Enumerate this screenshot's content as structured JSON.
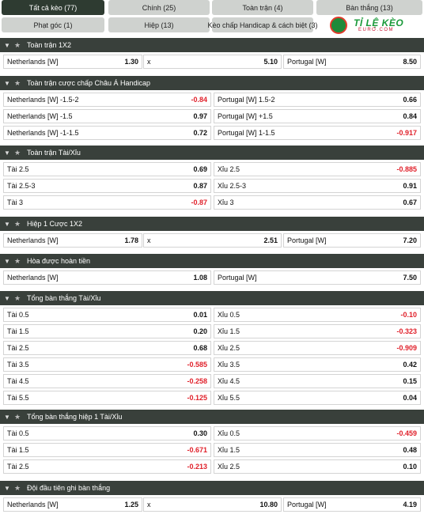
{
  "tabs": [
    {
      "label": "Tất cả kèo (77)"
    },
    {
      "label": "Chính (25)"
    },
    {
      "label": "Toàn trận (4)"
    },
    {
      "label": "Bàn thắng (13)"
    },
    {
      "label": "Phạt góc (1)"
    },
    {
      "label": "Hiệp (13)"
    },
    {
      "label": "Kèo chấp Handicap & cách biệt (3)"
    }
  ],
  "logo": {
    "main": "TỈ LỆ KÈO",
    "sub": "EURO.COM"
  },
  "sections": [
    {
      "title": "Toàn trận 1X2",
      "rows": [
        [
          {
            "n": "Netherlands [W]",
            "o": "1.30"
          },
          {
            "n": "x",
            "o": "5.10"
          },
          {
            "n": "Portugal [W]",
            "o": "8.50"
          }
        ]
      ]
    },
    {
      "title": "Toàn trận cược chấp Châu Á Handicap",
      "rows": [
        [
          {
            "n": "Netherlands [W] -1.5-2",
            "o": "-0.84"
          },
          {
            "n": "Portugal [W] 1.5-2",
            "o": "0.66"
          }
        ],
        [
          {
            "n": "Netherlands [W] -1.5",
            "o": "0.97"
          },
          {
            "n": "Portugal [W] +1.5",
            "o": "0.84"
          }
        ],
        [
          {
            "n": "Netherlands [W] -1-1.5",
            "o": "0.72"
          },
          {
            "n": "Portugal [W] 1-1.5",
            "o": "-0.917"
          }
        ]
      ]
    },
    {
      "title": "Toàn trận Tài/Xỉu",
      "rows": [
        [
          {
            "n": "Tài 2.5",
            "o": "0.69"
          },
          {
            "n": "Xỉu 2.5",
            "o": "-0.885"
          }
        ],
        [
          {
            "n": "Tài 2.5-3",
            "o": "0.87"
          },
          {
            "n": "Xỉu 2.5-3",
            "o": "0.91"
          }
        ],
        [
          {
            "n": "Tài 3",
            "o": "-0.87"
          },
          {
            "n": "Xỉu 3",
            "o": "0.67"
          }
        ]
      ]
    },
    {
      "title": "Hiệp 1 Cược 1X2",
      "rows": [
        [
          {
            "n": "Netherlands [W]",
            "o": "1.78"
          },
          {
            "n": "x",
            "o": "2.51"
          },
          {
            "n": "Portugal [W]",
            "o": "7.20"
          }
        ]
      ]
    },
    {
      "title": "Hòa được hoàn tiền",
      "rows": [
        [
          {
            "n": "Netherlands [W]",
            "o": "1.08"
          },
          {
            "n": "Portugal [W]",
            "o": "7.50"
          }
        ]
      ]
    },
    {
      "title": "Tổng bàn thắng Tài/Xỉu",
      "rows": [
        [
          {
            "n": "Tài 0.5",
            "o": "0.01"
          },
          {
            "n": "Xỉu 0.5",
            "o": "-0.10"
          }
        ],
        [
          {
            "n": "Tài 1.5",
            "o": "0.20"
          },
          {
            "n": "Xỉu 1.5",
            "o": "-0.323"
          }
        ],
        [
          {
            "n": "Tài 2.5",
            "o": "0.68"
          },
          {
            "n": "Xỉu 2.5",
            "o": "-0.909"
          }
        ],
        [
          {
            "n": "Tài 3.5",
            "o": "-0.585"
          },
          {
            "n": "Xỉu 3.5",
            "o": "0.42"
          }
        ],
        [
          {
            "n": "Tài 4.5",
            "o": "-0.258"
          },
          {
            "n": "Xỉu 4.5",
            "o": "0.15"
          }
        ],
        [
          {
            "n": "Tài 5.5",
            "o": "-0.125"
          },
          {
            "n": "Xỉu 5.5",
            "o": "0.04"
          }
        ]
      ]
    },
    {
      "title": "Tổng bàn thắng hiệp 1 Tài/Xỉu",
      "rows": [
        [
          {
            "n": "Tài 0.5",
            "o": "0.30"
          },
          {
            "n": "Xỉu 0.5",
            "o": "-0.459"
          }
        ],
        [
          {
            "n": "Tài 1.5",
            "o": "-0.671"
          },
          {
            "n": "Xỉu 1.5",
            "o": "0.48"
          }
        ],
        [
          {
            "n": "Tài 2.5",
            "o": "-0.213"
          },
          {
            "n": "Xỉu 2.5",
            "o": "0.10"
          }
        ]
      ]
    },
    {
      "title": "Đội đầu tiên ghi bàn thắng",
      "rows": [
        [
          {
            "n": "Netherlands [W]",
            "o": "1.25"
          },
          {
            "n": "x",
            "o": "10.80"
          },
          {
            "n": "Portugal [W]",
            "o": "4.19"
          }
        ]
      ]
    }
  ]
}
